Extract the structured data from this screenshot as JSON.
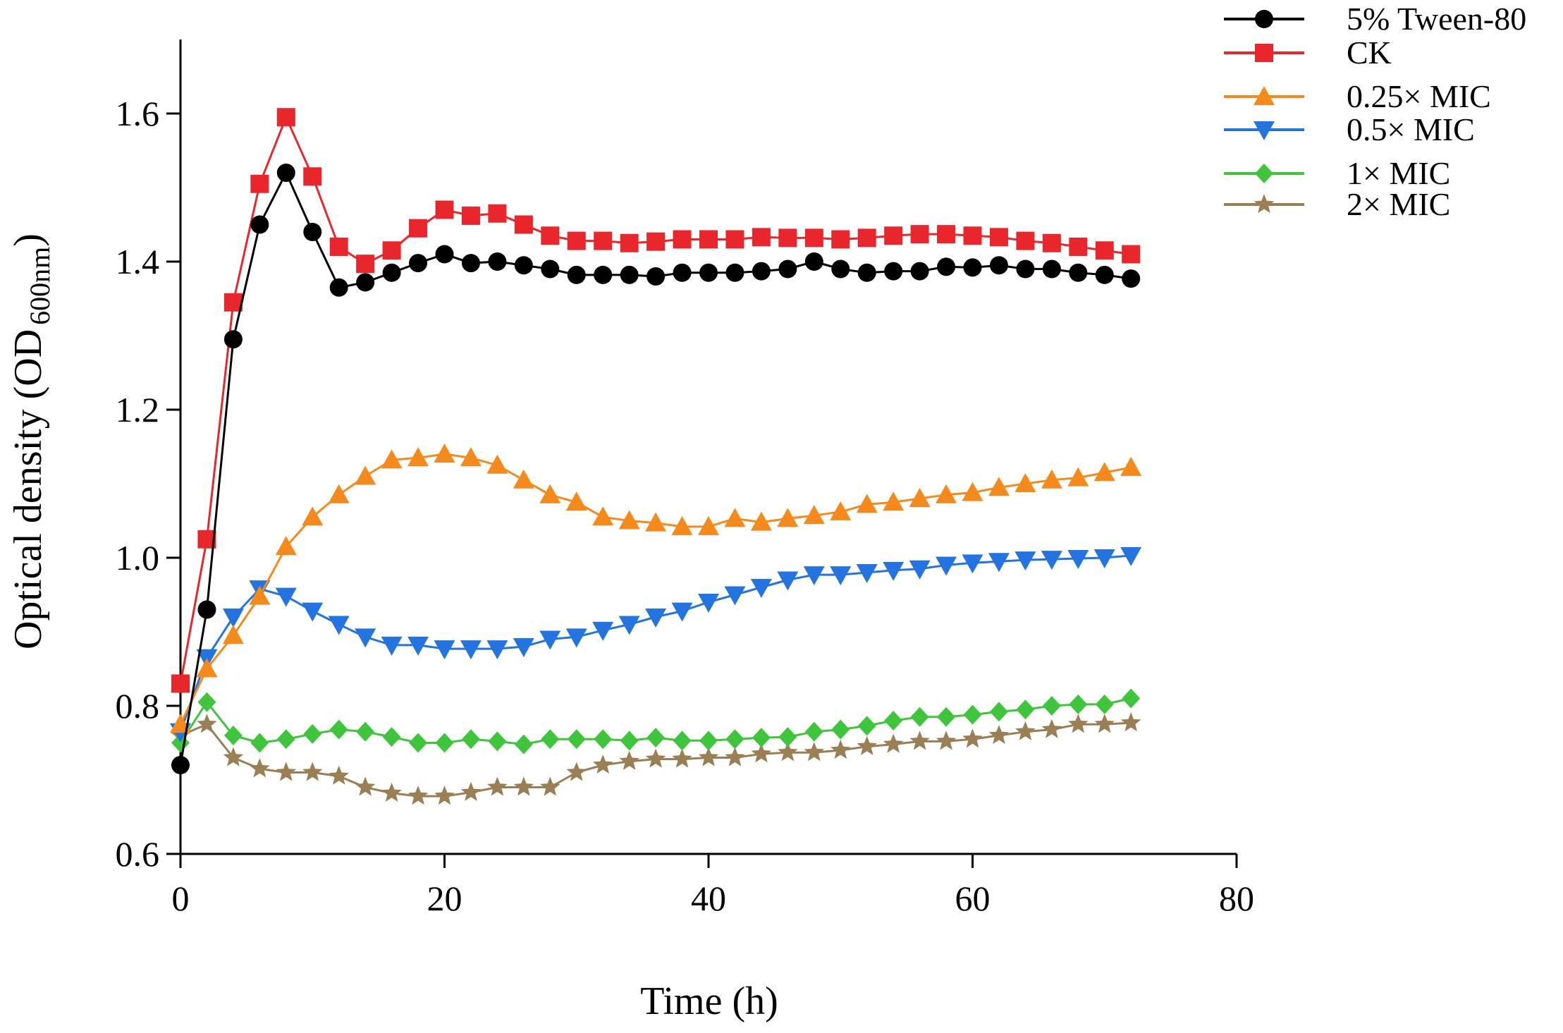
{
  "chart_data": {
    "type": "line",
    "title": "",
    "xlabel": "Time (h)",
    "ylabel_main": "Optical density (OD",
    "ylabel_sub": "600nm",
    "ylabel_close": ")",
    "xlim": [
      0,
      80
    ],
    "ylim": [
      0.6,
      1.7
    ],
    "xticks": [
      0,
      20,
      40,
      60,
      80
    ],
    "xtick_labels": [
      "0",
      "20",
      "40",
      "60",
      "80"
    ],
    "yticks": [
      0.6,
      0.8,
      1.0,
      1.2,
      1.4,
      1.6
    ],
    "ytick_labels": [
      "0.6",
      "0.8",
      "1.0",
      "1.2",
      "1.4",
      "1.6"
    ],
    "grid": false,
    "legend_position": "top-right",
    "x": [
      0,
      2,
      4,
      6,
      8,
      10,
      12,
      14,
      16,
      18,
      20,
      22,
      24,
      26,
      28,
      30,
      32,
      34,
      36,
      38,
      40,
      42,
      44,
      46,
      48,
      50,
      52,
      54,
      56,
      58,
      60,
      62,
      64,
      66,
      68,
      70,
      72
    ],
    "series": [
      {
        "name": "5% Tween-80",
        "color": "#000000",
        "marker": "circle",
        "values": [
          0.72,
          0.93,
          1.295,
          1.45,
          1.52,
          1.44,
          1.365,
          1.372,
          1.385,
          1.398,
          1.41,
          1.398,
          1.4,
          1.395,
          1.39,
          1.382,
          1.382,
          1.382,
          1.38,
          1.385,
          1.385,
          1.385,
          1.387,
          1.39,
          1.4,
          1.39,
          1.385,
          1.387,
          1.387,
          1.393,
          1.392,
          1.395,
          1.39,
          1.39,
          1.385,
          1.382,
          1.377
        ]
      },
      {
        "name": "CK",
        "color": "#e8262b",
        "marker": "square",
        "values": [
          0.83,
          1.025,
          1.345,
          1.505,
          1.595,
          1.515,
          1.42,
          1.397,
          1.415,
          1.445,
          1.47,
          1.462,
          1.465,
          1.45,
          1.435,
          1.428,
          1.428,
          1.425,
          1.427,
          1.43,
          1.43,
          1.43,
          1.433,
          1.432,
          1.432,
          1.43,
          1.432,
          1.435,
          1.437,
          1.437,
          1.435,
          1.433,
          1.428,
          1.425,
          1.42,
          1.415,
          1.41
        ]
      },
      {
        "name": "0.25× MIC",
        "color": "#f4891c",
        "marker": "triangle-up",
        "values": [
          0.775,
          0.85,
          0.895,
          0.948,
          1.015,
          1.055,
          1.085,
          1.11,
          1.132,
          1.135,
          1.14,
          1.135,
          1.125,
          1.105,
          1.085,
          1.075,
          1.055,
          1.05,
          1.047,
          1.042,
          1.042,
          1.053,
          1.048,
          1.053,
          1.057,
          1.062,
          1.072,
          1.075,
          1.08,
          1.085,
          1.088,
          1.095,
          1.1,
          1.105,
          1.108,
          1.115,
          1.122
        ]
      },
      {
        "name": "0.5× MIC",
        "color": "#2374e1",
        "marker": "triangle-down",
        "values": [
          0.765,
          0.865,
          0.92,
          0.958,
          0.948,
          0.928,
          0.91,
          0.893,
          0.882,
          0.882,
          0.877,
          0.877,
          0.877,
          0.88,
          0.89,
          0.893,
          0.902,
          0.91,
          0.92,
          0.928,
          0.94,
          0.95,
          0.96,
          0.97,
          0.977,
          0.977,
          0.98,
          0.983,
          0.985,
          0.99,
          0.993,
          0.995,
          0.997,
          0.998,
          0.999,
          1.0,
          1.003
        ]
      },
      {
        "name": "1× MIC",
        "color": "#3ec53c",
        "marker": "diamond",
        "values": [
          0.75,
          0.805,
          0.76,
          0.75,
          0.755,
          0.762,
          0.768,
          0.765,
          0.758,
          0.75,
          0.75,
          0.755,
          0.752,
          0.748,
          0.755,
          0.755,
          0.755,
          0.753,
          0.757,
          0.753,
          0.753,
          0.755,
          0.757,
          0.758,
          0.765,
          0.768,
          0.773,
          0.78,
          0.785,
          0.785,
          0.788,
          0.792,
          0.795,
          0.8,
          0.802,
          0.802,
          0.81
        ]
      },
      {
        "name": "2× MIC",
        "color": "#9a7f55",
        "marker": "star",
        "values": [
          0.76,
          0.775,
          0.73,
          0.715,
          0.71,
          0.71,
          0.705,
          0.69,
          0.682,
          0.678,
          0.678,
          0.683,
          0.69,
          0.69,
          0.69,
          0.71,
          0.72,
          0.725,
          0.728,
          0.728,
          0.73,
          0.73,
          0.735,
          0.737,
          0.737,
          0.74,
          0.745,
          0.748,
          0.752,
          0.752,
          0.755,
          0.76,
          0.765,
          0.768,
          0.775,
          0.775,
          0.777
        ]
      }
    ]
  }
}
